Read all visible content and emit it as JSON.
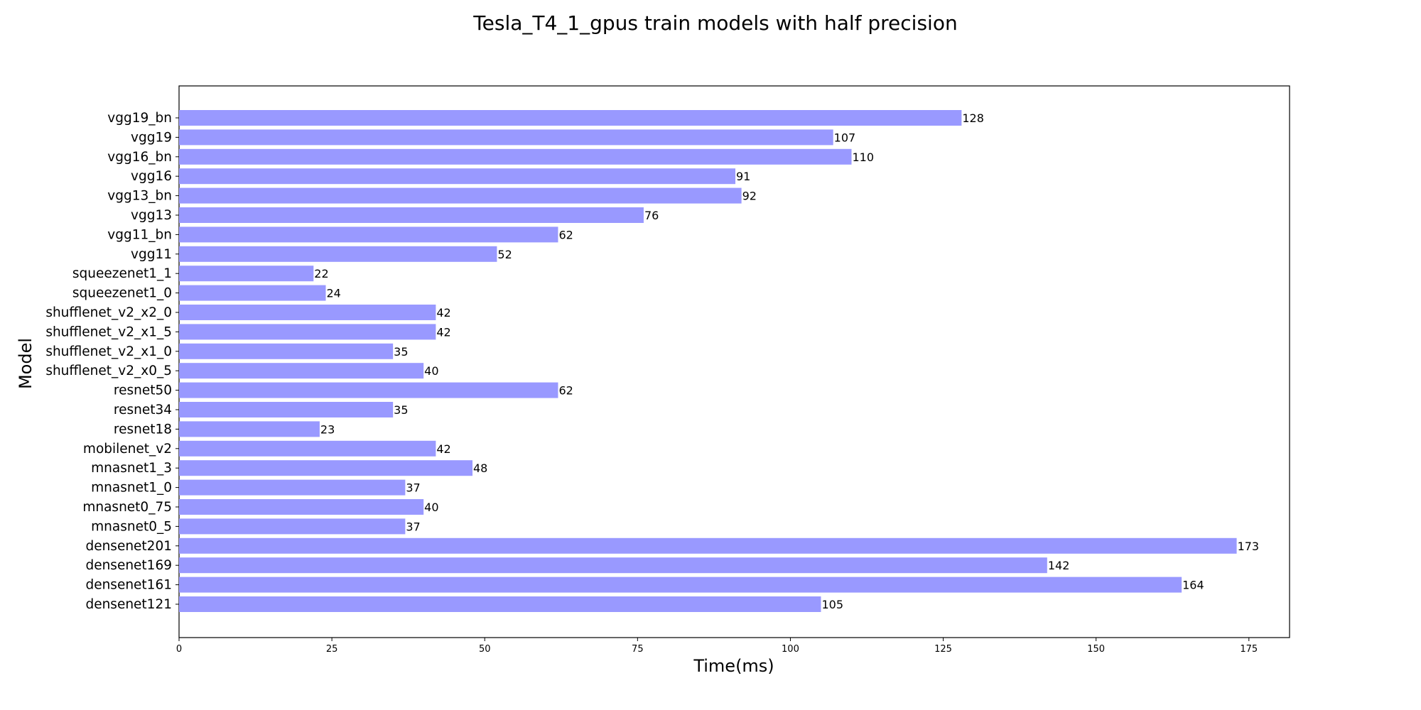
{
  "chart_data": {
    "type": "bar",
    "orientation": "horizontal",
    "title": "Tesla_T4_1_gpus train models with half precision",
    "xlabel": "Time(ms)",
    "ylabel": "Model",
    "xlim": [
      0,
      181.65
    ],
    "xticks": [
      0,
      25,
      50,
      75,
      100,
      125,
      150,
      175
    ],
    "grid": false,
    "bar_color": "#9999ff",
    "categories": [
      "densenet121",
      "densenet161",
      "densenet169",
      "densenet201",
      "mnasnet0_5",
      "mnasnet0_75",
      "mnasnet1_0",
      "mnasnet1_3",
      "mobilenet_v2",
      "resnet18",
      "resnet34",
      "resnet50",
      "shufflenet_v2_x0_5",
      "shufflenet_v2_x1_0",
      "shufflenet_v2_x1_5",
      "shufflenet_v2_x2_0",
      "squeezenet1_0",
      "squeezenet1_1",
      "vgg11",
      "vgg11_bn",
      "vgg13",
      "vgg13_bn",
      "vgg16",
      "vgg16_bn",
      "vgg19",
      "vgg19_bn"
    ],
    "values": [
      105,
      164,
      142,
      173,
      37,
      40,
      37,
      48,
      42,
      23,
      35,
      62,
      40,
      35,
      42,
      42,
      24,
      22,
      52,
      62,
      76,
      92,
      91,
      110,
      107,
      128
    ]
  }
}
